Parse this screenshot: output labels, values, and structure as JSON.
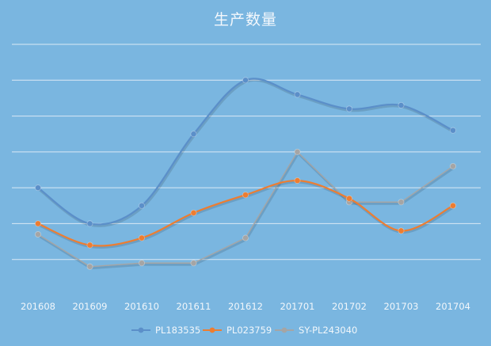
{
  "chart_data": {
    "type": "line",
    "title": "生产数量",
    "categories": [
      "201608",
      "201609",
      "201610",
      "201611",
      "201612",
      "201701",
      "201702",
      "201703",
      "201704"
    ],
    "ylim": [
      0,
      7
    ],
    "grid": true,
    "legend": "bottom",
    "series": [
      {
        "name": "PL183535",
        "color": "#5b8fc9",
        "smooth": true,
        "values": [
          3.0,
          2.0,
          2.5,
          4.5,
          6.0,
          5.6,
          5.2,
          5.3,
          4.6
        ]
      },
      {
        "name": "PL023759",
        "color": "#ed7d31",
        "smooth": true,
        "values": [
          2.0,
          1.4,
          1.6,
          2.3,
          2.8,
          3.2,
          2.7,
          1.8,
          2.5
        ]
      },
      {
        "name": "SY-PL243040",
        "color": "#a5a5a5",
        "smooth": false,
        "values": [
          1.7,
          0.8,
          0.9,
          0.9,
          1.6,
          4.0,
          2.6,
          2.6,
          3.6
        ]
      }
    ]
  }
}
